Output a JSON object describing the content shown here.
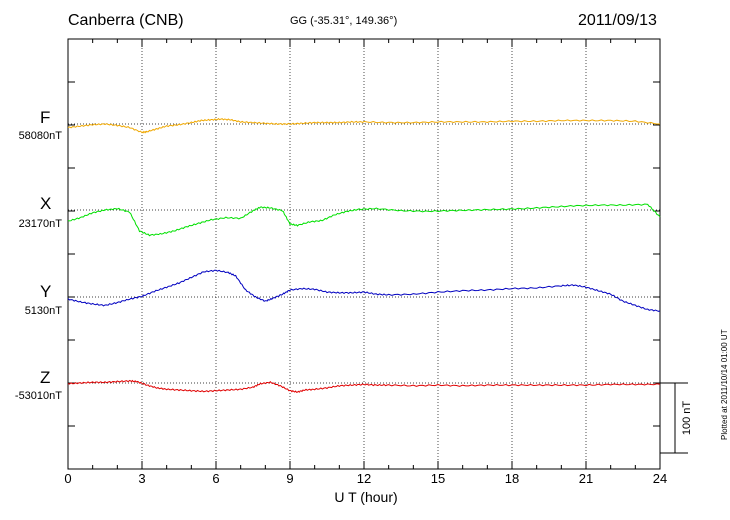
{
  "header": {
    "station": "Canberra (CNB)",
    "coords": "GG (-35.31°, 149.36°)",
    "date": "2011/09/13"
  },
  "footer": {
    "plotted": "Plotted at 2011/10/14 01:00 UT"
  },
  "chart_data": {
    "type": "line",
    "xlabel": "U T (hour)",
    "xlim": [
      0,
      24
    ],
    "xticks": [
      0,
      3,
      6,
      9,
      12,
      15,
      18,
      21,
      24
    ],
    "grid": true,
    "scale_bar": "100 nT",
    "scale_bar_nT": 100,
    "series": [
      {
        "name": "F",
        "baseline": "58080nT",
        "color": "#f0a800",
        "x": [
          0,
          0.5,
          1,
          1.5,
          2,
          2.5,
          3,
          3.2,
          3.6,
          4,
          4.5,
          5,
          5.4,
          5.8,
          6.2,
          6.6,
          7,
          7.5,
          8,
          8.5,
          9,
          9.5,
          10,
          10.5,
          11,
          11.5,
          12,
          13,
          14,
          15,
          16,
          17,
          18,
          19,
          20,
          21,
          22,
          23,
          24
        ],
        "y": [
          -5,
          -3,
          -1,
          0,
          -2,
          -5,
          -12,
          -11,
          -7,
          -3,
          -1,
          2,
          5,
          6,
          7,
          6,
          3,
          2,
          1,
          0,
          0,
          1,
          2,
          2,
          2,
          3,
          3,
          2,
          2,
          3,
          3,
          3,
          4,
          4,
          5,
          5,
          5,
          4,
          0
        ]
      },
      {
        "name": "X",
        "baseline": "23170nT",
        "color": "#00e000",
        "x": [
          0,
          0.5,
          1,
          1.5,
          2,
          2.5,
          2.9,
          3.3,
          3.8,
          4.3,
          4.8,
          5.3,
          5.8,
          6.4,
          7,
          7.5,
          7.8,
          8.2,
          8.7,
          9,
          9.3,
          9.8,
          10.3,
          10.8,
          11.3,
          11.8,
          12.5,
          13.5,
          14.5,
          15.5,
          16.5,
          17.5,
          18.5,
          19.5,
          20.5,
          21.5,
          22.5,
          23.5,
          24
        ],
        "y": [
          -16,
          -11,
          -4,
          0,
          2,
          -3,
          -30,
          -36,
          -34,
          -30,
          -24,
          -19,
          -14,
          -11,
          -12,
          -1,
          4,
          3,
          -1,
          -20,
          -22,
          -17,
          -15,
          -7,
          -2,
          1,
          2,
          -1,
          -2,
          -1,
          0,
          1,
          2,
          4,
          6,
          7,
          7,
          8,
          -10
        ]
      },
      {
        "name": "Y",
        "baseline": "5130nT",
        "color": "#0000c0",
        "x": [
          0,
          0.5,
          1,
          1.5,
          2,
          2.5,
          3,
          3.5,
          4,
          4.5,
          5,
          5.5,
          6,
          6.5,
          6.8,
          7.2,
          7.6,
          8,
          8.3,
          8.7,
          9,
          9.5,
          10,
          10.5,
          11,
          11.5,
          12,
          12.5,
          13,
          14,
          15,
          16,
          17,
          18,
          19,
          20,
          20.5,
          21,
          21.5,
          22,
          22.5,
          23,
          23.5,
          24
        ],
        "y": [
          -3,
          -7,
          -10,
          -12,
          -8,
          -3,
          1,
          8,
          14,
          20,
          28,
          36,
          38,
          35,
          30,
          10,
          0,
          -6,
          -2,
          4,
          10,
          12,
          11,
          7,
          6,
          6,
          7,
          4,
          3,
          4,
          7,
          9,
          10,
          12,
          13,
          16,
          17,
          14,
          9,
          4,
          -6,
          -12,
          -18,
          -20
        ]
      },
      {
        "name": "Z",
        "baseline": "-53010nT",
        "color": "#e00000",
        "x": [
          0,
          0.5,
          1,
          1.5,
          2,
          2.5,
          2.8,
          3.2,
          3.6,
          4,
          4.5,
          5,
          5.5,
          6,
          6.5,
          7,
          7.5,
          7.8,
          8.2,
          8.6,
          9,
          9.3,
          9.6,
          10,
          10.5,
          11,
          11.5,
          12,
          12.5,
          13,
          14,
          15,
          16,
          17,
          18,
          19,
          20,
          21,
          22,
          23,
          24
        ],
        "y": [
          -1,
          0,
          1,
          1,
          2,
          3,
          2,
          -3,
          -7,
          -9,
          -10,
          -11,
          -12,
          -11,
          -10,
          -9,
          -6,
          -1,
          1,
          -4,
          -11,
          -13,
          -10,
          -9,
          -7,
          -4,
          -3,
          -2,
          -3,
          -3,
          -4,
          -3,
          -4,
          -3,
          -3,
          -3,
          -3,
          -3,
          -2,
          -2,
          -2
        ]
      }
    ]
  }
}
